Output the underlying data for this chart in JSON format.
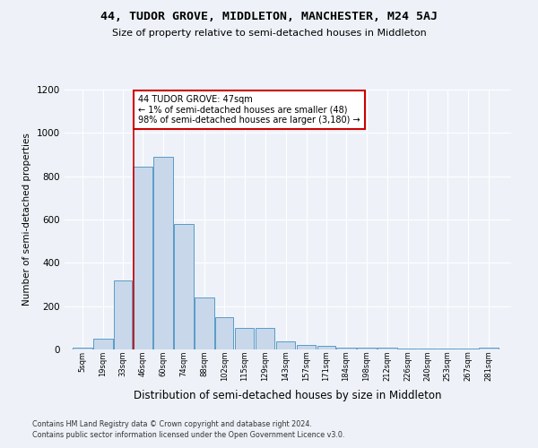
{
  "title1": "44, TUDOR GROVE, MIDDLETON, MANCHESTER, M24 5AJ",
  "title2": "Size of property relative to semi-detached houses in Middleton",
  "xlabel": "Distribution of semi-detached houses by size in Middleton",
  "ylabel": "Number of semi-detached properties",
  "footnote1": "Contains HM Land Registry data © Crown copyright and database right 2024.",
  "footnote2": "Contains public sector information licensed under the Open Government Licence v3.0.",
  "annotation_line1": "44 TUDOR GROVE: 47sqm",
  "annotation_line2": "← 1% of semi-detached houses are smaller (48)",
  "annotation_line3": "98% of semi-detached houses are larger (3,180) →",
  "bin_labels": [
    "5sqm",
    "19sqm",
    "33sqm",
    "46sqm",
    "60sqm",
    "74sqm",
    "88sqm",
    "102sqm",
    "115sqm",
    "129sqm",
    "143sqm",
    "157sqm",
    "171sqm",
    "184sqm",
    "198sqm",
    "212sqm",
    "226sqm",
    "240sqm",
    "253sqm",
    "267sqm",
    "281sqm"
  ],
  "bin_edges": [
    5,
    19,
    33,
    46,
    60,
    74,
    88,
    102,
    115,
    129,
    143,
    157,
    171,
    184,
    198,
    212,
    226,
    240,
    253,
    267,
    281,
    295
  ],
  "bar_values": [
    8,
    50,
    320,
    845,
    890,
    580,
    240,
    150,
    100,
    100,
    38,
    22,
    15,
    10,
    8,
    8,
    6,
    5,
    4,
    3,
    8
  ],
  "bar_color": "#c8d8ea",
  "bar_edge_color": "#5a9bc8",
  "property_line_x": 47,
  "annotation_box_color": "#cc0000",
  "ylim": [
    0,
    1200
  ],
  "yticks": [
    0,
    200,
    400,
    600,
    800,
    1000,
    1200
  ],
  "bg_color": "#eef2f8",
  "grid_color": "#ffffff"
}
